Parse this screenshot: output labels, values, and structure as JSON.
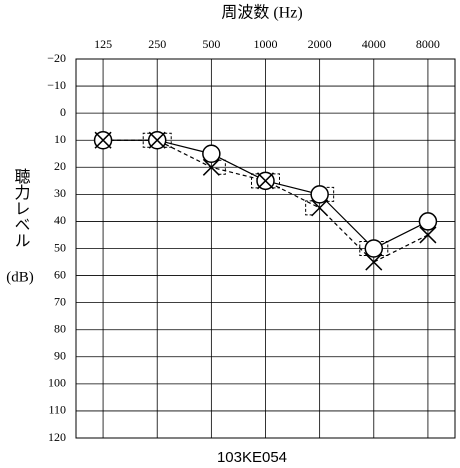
{
  "chart_data": {
    "type": "audiogram",
    "title": "周波数 (Hz)",
    "ylabel": "聴力レベル",
    "yunit": "(dB)",
    "caption": "103KE054",
    "categories": [
      "125",
      "250",
      "500",
      "1000",
      "2000",
      "4000",
      "8000"
    ],
    "ylim": [
      -20,
      120
    ],
    "yticks": [
      {
        "value": -20,
        "label": "−20"
      },
      {
        "value": -10,
        "label": "−10"
      },
      0,
      10,
      20,
      30,
      40,
      50,
      60,
      70,
      80,
      90,
      100,
      110,
      120
    ],
    "grid": true,
    "color": "#000000",
    "series": [
      {
        "marker": "o",
        "line": "solid",
        "color": "#000000",
        "values": [
          10,
          10,
          15,
          25,
          30,
          50,
          40
        ]
      },
      {
        "marker": "x",
        "line": "dashed",
        "color": "#000000",
        "values": [
          10,
          10,
          20,
          25,
          35,
          55,
          45
        ]
      },
      {
        "marker": "[",
        "line": "none",
        "color": "#000000",
        "values": [
          null,
          10,
          null,
          25,
          35,
          50,
          null
        ]
      },
      {
        "marker": "]",
        "line": "none",
        "color": "#000000",
        "values": [
          null,
          10,
          20,
          25,
          30,
          50,
          null
        ]
      }
    ]
  }
}
